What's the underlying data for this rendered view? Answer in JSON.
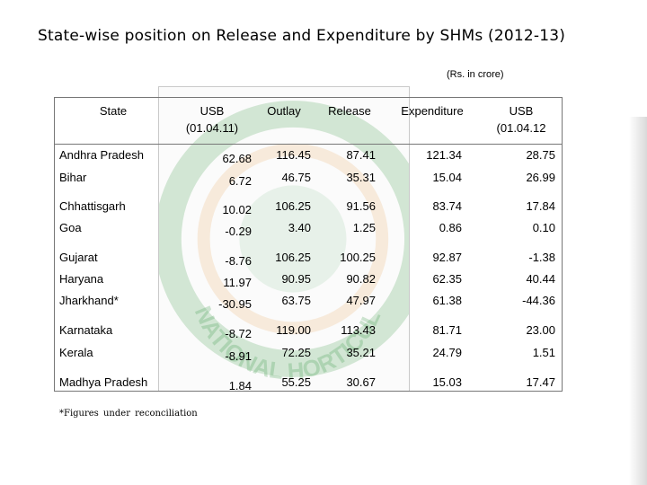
{
  "title": "State-wise position on Release and Expenditure by SHMs (2012-13)",
  "unit_note": "(Rs. in crore)",
  "headers": {
    "state": "State",
    "usb_open_1": "USB",
    "usb_open_2": "(01.04.11)",
    "outlay": "Outlay",
    "release": "Release",
    "expenditure": "Expenditure",
    "usb_close_1": "USB",
    "usb_close_2": "(01.04.12"
  },
  "rows": [
    {
      "state": "Andhra Pradesh",
      "usb_open": "62.68",
      "outlay": "116.45",
      "release": "87.41",
      "expenditure": "121.34",
      "usb_close": "28.75"
    },
    {
      "state": "Bihar",
      "usb_open": "6.72",
      "outlay": "46.75",
      "release": "35.31",
      "expenditure": "15.04",
      "usb_close": "26.99"
    },
    {
      "state": "Chhattisgarh",
      "usb_open": "10.02",
      "outlay": "106.25",
      "release": "91.56",
      "expenditure": "83.74",
      "usb_close": "17.84"
    },
    {
      "state": "Goa",
      "usb_open": "-0.29",
      "outlay": "3.40",
      "release": "1.25",
      "expenditure": "0.86",
      "usb_close": "0.10"
    },
    {
      "state": "Gujarat",
      "usb_open": "-8.76",
      "outlay": "106.25",
      "release": "100.25",
      "expenditure": "92.87",
      "usb_close": "-1.38"
    },
    {
      "state": "Haryana",
      "usb_open": "11.97",
      "outlay": "90.95",
      "release": "90.82",
      "expenditure": "62.35",
      "usb_close": "40.44"
    },
    {
      "state": "Jharkhand*",
      "usb_open": "-30.95",
      "outlay": "63.75",
      "release": "47.97",
      "expenditure": "61.38",
      "usb_close": "-44.36"
    },
    {
      "state": "Karnataka",
      "usb_open": "-8.72",
      "outlay": "119.00",
      "release": "113.43",
      "expenditure": "81.71",
      "usb_close": "23.00"
    },
    {
      "state": "Kerala",
      "usb_open": "-8.91",
      "outlay": "72.25",
      "release": "35.21",
      "expenditure": "24.79",
      "usb_close": "1.51"
    },
    {
      "state": "Madhya Pradesh",
      "usb_open": "1.84",
      "outlay": "55.25",
      "release": "30.67",
      "expenditure": "15.03",
      "usb_close": "17.47"
    }
  ],
  "footnote": "*Figures under reconciliation",
  "watermark": {
    "text": "NATIONAL HORTICULTURE MISSION"
  },
  "colors": {
    "watermark_green": "#3f9b4a",
    "watermark_orange": "#e8a14c"
  }
}
